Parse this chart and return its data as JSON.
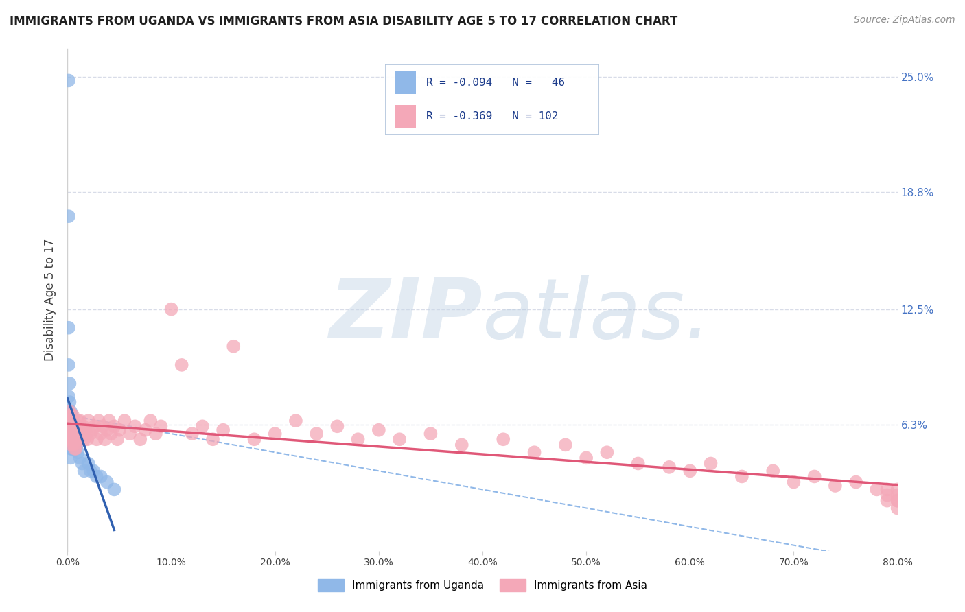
{
  "title": "IMMIGRANTS FROM UGANDA VS IMMIGRANTS FROM ASIA DISABILITY AGE 5 TO 17 CORRELATION CHART",
  "source": "Source: ZipAtlas.com",
  "ylabel": "Disability Age 5 to 17",
  "xlim": [
    0.0,
    0.8
  ],
  "ylim": [
    -0.005,
    0.265
  ],
  "xticks": [
    0.0,
    0.1,
    0.2,
    0.3,
    0.4,
    0.5,
    0.6,
    0.7,
    0.8
  ],
  "xtick_labels": [
    "0.0%",
    "10.0%",
    "20.0%",
    "30.0%",
    "40.0%",
    "50.0%",
    "60.0%",
    "70.0%",
    "80.0%"
  ],
  "ytick_labels": [
    "6.3%",
    "12.5%",
    "18.8%",
    "25.0%"
  ],
  "yticks": [
    0.063,
    0.125,
    0.188,
    0.25
  ],
  "uganda_color": "#90b8e8",
  "asia_color": "#f4a8b8",
  "uganda_line_color": "#3060b0",
  "asia_line_color": "#e05878",
  "dashed_line_color": "#90b8e8",
  "grid_color": "#d8dce8",
  "watermark_color": "#ccdcee",
  "title_color": "#202020",
  "source_color": "#909090",
  "background_color": "#ffffff",
  "legend_box_color": "#dde8f4",
  "legend_text_color": "#1a3a8a",
  "uganda_x": [
    0.001,
    0.001,
    0.001,
    0.001,
    0.001,
    0.001,
    0.001,
    0.002,
    0.002,
    0.002,
    0.002,
    0.002,
    0.003,
    0.003,
    0.003,
    0.003,
    0.003,
    0.003,
    0.003,
    0.003,
    0.004,
    0.004,
    0.004,
    0.004,
    0.004,
    0.005,
    0.005,
    0.005,
    0.006,
    0.006,
    0.007,
    0.007,
    0.008,
    0.008,
    0.009,
    0.01,
    0.012,
    0.014,
    0.016,
    0.02,
    0.022,
    0.025,
    0.028,
    0.032,
    0.038,
    0.045
  ],
  "uganda_y": [
    0.248,
    0.175,
    0.115,
    0.095,
    0.078,
    0.07,
    0.065,
    0.085,
    0.075,
    0.068,
    0.062,
    0.058,
    0.07,
    0.065,
    0.062,
    0.058,
    0.055,
    0.052,
    0.05,
    0.045,
    0.068,
    0.062,
    0.058,
    0.055,
    0.05,
    0.065,
    0.06,
    0.055,
    0.06,
    0.055,
    0.058,
    0.052,
    0.056,
    0.05,
    0.052,
    0.048,
    0.045,
    0.042,
    0.038,
    0.042,
    0.038,
    0.038,
    0.035,
    0.035,
    0.032,
    0.028
  ],
  "asia_x": [
    0.001,
    0.001,
    0.002,
    0.002,
    0.002,
    0.003,
    0.003,
    0.003,
    0.004,
    0.004,
    0.004,
    0.005,
    0.005,
    0.005,
    0.006,
    0.006,
    0.006,
    0.007,
    0.007,
    0.007,
    0.008,
    0.008,
    0.008,
    0.009,
    0.009,
    0.01,
    0.01,
    0.011,
    0.011,
    0.012,
    0.012,
    0.013,
    0.014,
    0.015,
    0.016,
    0.017,
    0.018,
    0.019,
    0.02,
    0.022,
    0.024,
    0.026,
    0.028,
    0.03,
    0.032,
    0.034,
    0.036,
    0.038,
    0.04,
    0.042,
    0.045,
    0.048,
    0.05,
    0.055,
    0.06,
    0.065,
    0.07,
    0.075,
    0.08,
    0.085,
    0.09,
    0.1,
    0.11,
    0.12,
    0.13,
    0.14,
    0.15,
    0.16,
    0.18,
    0.2,
    0.22,
    0.24,
    0.26,
    0.28,
    0.3,
    0.32,
    0.35,
    0.38,
    0.42,
    0.45,
    0.48,
    0.5,
    0.52,
    0.55,
    0.58,
    0.6,
    0.62,
    0.65,
    0.68,
    0.7,
    0.72,
    0.74,
    0.76,
    0.78,
    0.79,
    0.79,
    0.79,
    0.8,
    0.8,
    0.8,
    0.8,
    0.8
  ],
  "asia_y": [
    0.065,
    0.058,
    0.07,
    0.062,
    0.055,
    0.068,
    0.06,
    0.055,
    0.065,
    0.058,
    0.052,
    0.068,
    0.062,
    0.055,
    0.065,
    0.058,
    0.052,
    0.062,
    0.055,
    0.05,
    0.062,
    0.055,
    0.05,
    0.06,
    0.055,
    0.065,
    0.058,
    0.062,
    0.055,
    0.065,
    0.058,
    0.06,
    0.058,
    0.062,
    0.055,
    0.06,
    0.058,
    0.055,
    0.065,
    0.058,
    0.06,
    0.062,
    0.055,
    0.065,
    0.058,
    0.062,
    0.055,
    0.06,
    0.065,
    0.058,
    0.062,
    0.055,
    0.06,
    0.065,
    0.058,
    0.062,
    0.055,
    0.06,
    0.065,
    0.058,
    0.062,
    0.125,
    0.095,
    0.058,
    0.062,
    0.055,
    0.06,
    0.105,
    0.055,
    0.058,
    0.065,
    0.058,
    0.062,
    0.055,
    0.06,
    0.055,
    0.058,
    0.052,
    0.055,
    0.048,
    0.052,
    0.045,
    0.048,
    0.042,
    0.04,
    0.038,
    0.042,
    0.035,
    0.038,
    0.032,
    0.035,
    0.03,
    0.032,
    0.028,
    0.025,
    0.028,
    0.022,
    0.028,
    0.025,
    0.022,
    0.018,
    0.022
  ]
}
